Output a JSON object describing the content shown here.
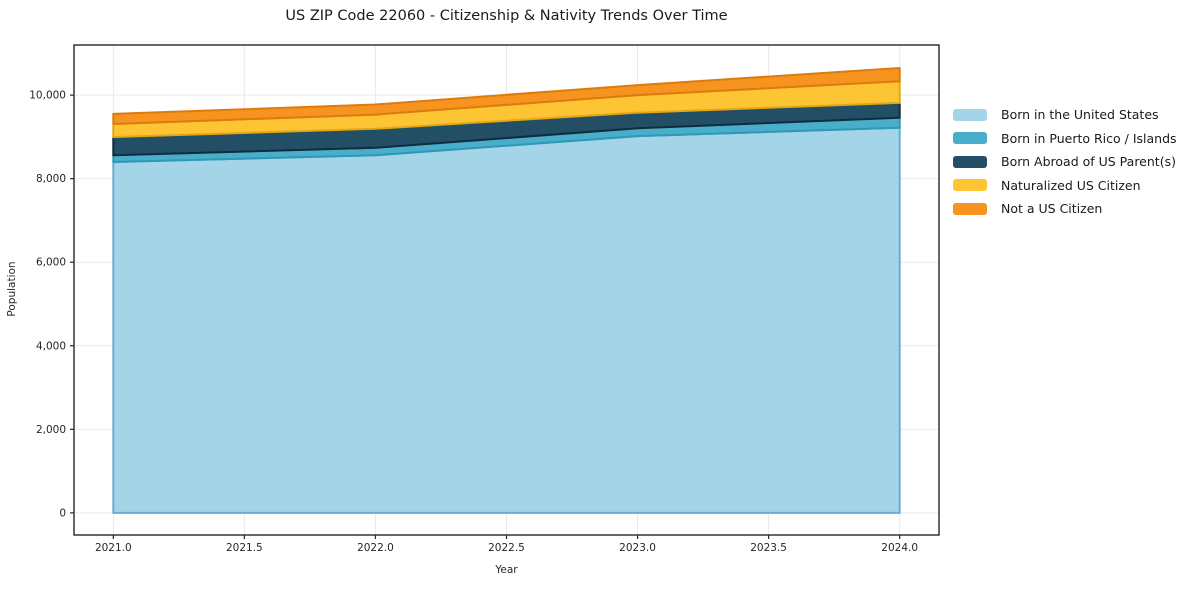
{
  "title": "US ZIP Code 22060 - Citizenship & Nativity Trends Over Time",
  "chart_data": {
    "type": "area",
    "stacked": true,
    "title": "US ZIP Code 22060 - Citizenship & Nativity Trends Over Time",
    "xlabel": "Year",
    "ylabel": "Population",
    "x": [
      2021,
      2022,
      2023,
      2024
    ],
    "series": [
      {
        "name": "Born in the United States",
        "values": [
          8400,
          8560,
          9020,
          9220
        ],
        "color": "#a3d4e8",
        "edge": "#68aed2"
      },
      {
        "name": "Born in Puerto Rico / Islands",
        "values": [
          160,
          180,
          185,
          240
        ],
        "color": "#49aec9",
        "edge": "#2f98b4"
      },
      {
        "name": "Born Abroad of US Parent(s)",
        "values": [
          435,
          455,
          375,
          355
        ],
        "color": "#224f66",
        "edge": "#122c3d"
      },
      {
        "name": "Naturalized US Citizen",
        "values": [
          315,
          340,
          420,
          515
        ],
        "color": "#fdc433",
        "edge": "#e3a714"
      },
      {
        "name": "Not a US Citizen",
        "values": [
          240,
          240,
          240,
          320
        ],
        "color": "#f6941f",
        "edge": "#dc7b10"
      }
    ],
    "totals": [
      9550,
      9775,
      10240,
      10650
    ],
    "xticks": [
      2021.0,
      2021.5,
      2022.0,
      2022.5,
      2023.0,
      2023.5,
      2024.0
    ],
    "xtick_labels": [
      "2021.0",
      "2021.5",
      "2022.0",
      "2022.5",
      "2023.0",
      "2023.5",
      "2024.0"
    ],
    "yticks": [
      0,
      2000,
      4000,
      6000,
      8000,
      10000
    ],
    "ytick_labels": [
      "0",
      "2,000",
      "4,000",
      "6,000",
      "8,000",
      "10,000"
    ],
    "xlim": [
      2020.85,
      2024.15
    ],
    "ylim": [
      -530,
      11200
    ],
    "grid": true,
    "grid_color": "#e9e9e9",
    "frame_color": "#262626",
    "legend_position": "right"
  }
}
